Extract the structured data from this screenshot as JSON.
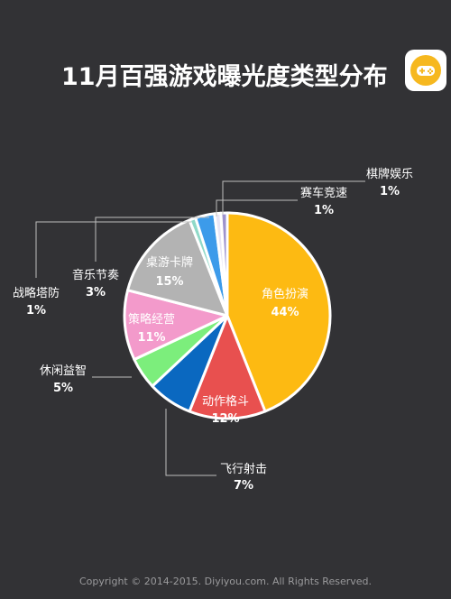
{
  "header": {
    "title": "11月百强游戏曝光度类型分布",
    "logo_icon": "gamepad-icon"
  },
  "footer": {
    "copyright": "Copyright © 2014-2015. Diyiyou.com. All Rights Reserved."
  },
  "chart_data": {
    "type": "pie",
    "title": "11月百强游戏曝光度类型分布",
    "slices": [
      {
        "label": "角色扮演",
        "value": 44,
        "display": "44%",
        "color": "#FDBA12"
      },
      {
        "label": "动作格斗",
        "value": 12,
        "display": "12%",
        "color": "#E8504F"
      },
      {
        "label": "飞行射击",
        "value": 7,
        "display": "7%",
        "color": "#0A68C0"
      },
      {
        "label": "休闲益智",
        "value": 5,
        "display": "5%",
        "color": "#7CEE7C"
      },
      {
        "label": "策略经营",
        "value": 11,
        "display": "11%",
        "color": "#F39ACB"
      },
      {
        "label": "桌游卡牌",
        "value": 15,
        "display": "15%",
        "color": "#B3B3B3"
      },
      {
        "label": "战略塔防",
        "value": 1,
        "display": "1%",
        "color": "#8FD9C8"
      },
      {
        "label": "音乐节奏",
        "value": 3,
        "display": "3%",
        "color": "#3C9BEA"
      },
      {
        "label": "赛车竞速",
        "value": 1,
        "display": "1%",
        "color": "#E9E6F6"
      },
      {
        "label": "棋牌娱乐",
        "value": 1,
        "display": "1%",
        "color": "#9E93CE"
      }
    ]
  }
}
